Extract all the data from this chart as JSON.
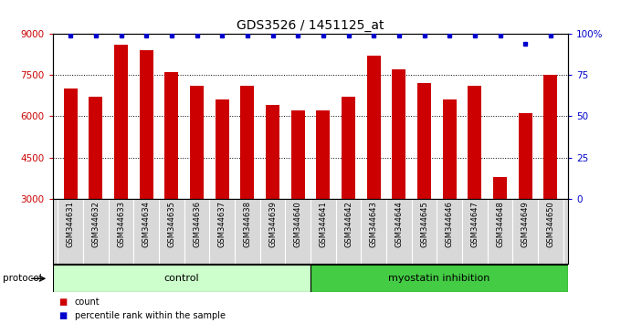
{
  "title": "GDS3526 / 1451125_at",
  "categories": [
    "GSM344631",
    "GSM344632",
    "GSM344633",
    "GSM344634",
    "GSM344635",
    "GSM344636",
    "GSM344637",
    "GSM344638",
    "GSM344639",
    "GSM344640",
    "GSM344641",
    "GSM344642",
    "GSM344643",
    "GSM344644",
    "GSM344645",
    "GSM344646",
    "GSM344647",
    "GSM344648",
    "GSM344649",
    "GSM344650"
  ],
  "bar_values": [
    7000,
    6700,
    8600,
    8400,
    7600,
    7100,
    6600,
    7100,
    6400,
    6200,
    6200,
    6700,
    8200,
    7700,
    7200,
    6600,
    7100,
    3800,
    6100,
    7500
  ],
  "percentile_values": [
    99,
    99,
    99,
    99,
    99,
    99,
    99,
    99,
    99,
    99,
    99,
    99,
    99,
    99,
    99,
    99,
    99,
    99,
    94,
    99
  ],
  "bar_color": "#cc0000",
  "percentile_color": "#0000cc",
  "ylim_left": [
    3000,
    9000
  ],
  "ylim_right": [
    0,
    100
  ],
  "yticks_left": [
    3000,
    4500,
    6000,
    7500,
    9000
  ],
  "yticks_right": [
    0,
    25,
    50,
    75,
    100
  ],
  "control_count": 10,
  "myostatin_count": 10,
  "control_label": "control",
  "myostatin_label": "myostatin inhibition",
  "protocol_label": "protocol",
  "legend_count_label": "count",
  "legend_percentile_label": "percentile rank within the sample",
  "background_color": "#ffffff",
  "plot_bg_color": "#ffffff",
  "control_bg": "#ccffcc",
  "myostatin_bg": "#44cc44",
  "tick_area_bg": "#d8d8d8",
  "title_fontsize": 10,
  "bar_width": 0.55
}
